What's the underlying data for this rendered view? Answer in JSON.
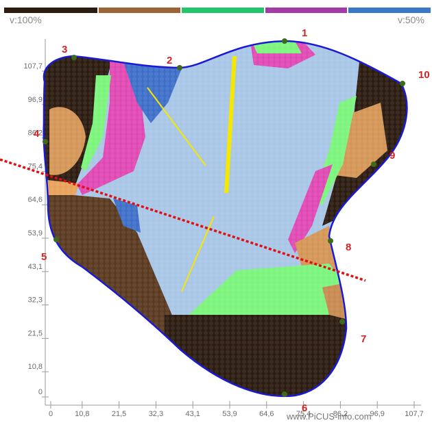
{
  "color_scale": {
    "segments": [
      {
        "name": "dark-brown",
        "color": "#2b1b10"
      },
      {
        "name": "brown",
        "color": "#9c6436"
      },
      {
        "name": "green",
        "color": "#23c46a"
      },
      {
        "name": "magenta",
        "color": "#a33aa6"
      },
      {
        "name": "blue",
        "color": "#3b78c8"
      }
    ],
    "left_label": "v:100%",
    "right_label": "v:50%"
  },
  "axes": {
    "x_ticks": [
      "0",
      "10,8",
      "21,5",
      "32,3",
      "43,1",
      "53,9",
      "64,6",
      "75,4",
      "86,2",
      "96,9",
      "107,7"
    ],
    "y_ticks": [
      "0",
      "10,8",
      "21,5",
      "32,3",
      "43,1",
      "53,9",
      "64,6",
      "75,4",
      "86,2",
      "96,9",
      "107,7"
    ]
  },
  "sensors": [
    "1",
    "2",
    "3",
    "4",
    "5",
    "6",
    "7",
    "8",
    "9",
    "10"
  ],
  "colors": {
    "outline": "#1a1ad6",
    "sound_wood": "#a8c6e6",
    "dark_brown": "#2b1b10",
    "brown": "#5a3a20",
    "light_brown": "#d49656",
    "green": "#7cf57c",
    "magenta": "#e048b4",
    "blue": "#3e6fc8",
    "sensor_dot": "#3e6a1e",
    "cut_line": "#e01010",
    "yellow_line": "#f5e800",
    "sensor_text": "#d32222"
  },
  "watermark": "www.PiCUS-info.com"
}
